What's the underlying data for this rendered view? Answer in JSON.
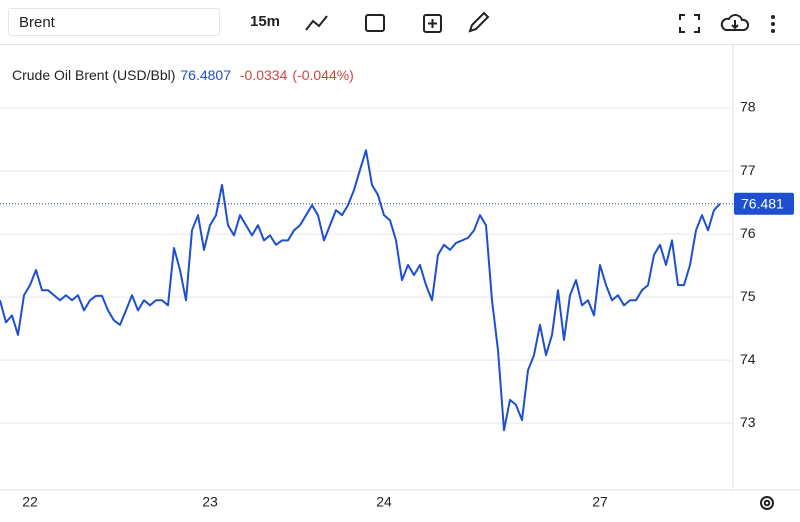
{
  "toolbar": {
    "symbol": "Brent",
    "interval": "15m"
  },
  "chart_data": {
    "type": "line",
    "series": [
      {
        "name": "Crude Oil Brent (USD/Bbl)",
        "color": "#1d4fcf",
        "values": [
          74.95,
          74.6,
          74.71,
          74.4,
          75.03,
          75.19,
          75.43,
          75.11,
          75.11,
          75.03,
          74.95,
          75.03,
          74.95,
          75.03,
          74.79,
          74.95,
          75.02,
          75.02,
          74.79,
          74.63,
          74.56,
          74.79,
          75.03,
          74.79,
          74.95,
          74.87,
          74.95,
          74.95,
          74.87,
          75.78,
          75.43,
          74.95,
          76.06,
          76.3,
          75.75,
          76.14,
          76.3,
          76.78,
          76.14,
          75.98,
          76.3,
          76.14,
          75.98,
          76.14,
          75.9,
          75.98,
          75.83,
          75.9,
          75.9,
          76.06,
          76.14,
          76.3,
          76.46,
          76.3,
          75.9,
          76.14,
          76.38,
          76.3,
          76.46,
          76.7,
          77.02,
          77.33,
          76.78,
          76.62,
          76.3,
          76.22,
          75.9,
          75.27,
          75.51,
          75.35,
          75.51,
          75.19,
          74.95,
          75.67,
          75.83,
          75.75,
          75.86,
          75.9,
          75.94,
          76.06,
          76.3,
          76.14,
          74.95,
          74.16,
          72.89,
          73.37,
          73.29,
          73.05,
          73.84,
          74.08,
          74.56,
          74.08,
          74.4,
          75.11,
          74.32,
          75.03,
          75.27,
          74.87,
          74.95,
          74.71,
          75.51,
          75.19,
          74.95,
          75.03,
          74.87,
          74.95,
          74.95,
          75.11,
          75.19,
          75.67,
          75.83,
          75.51,
          75.9,
          75.19,
          75.19,
          75.51,
          76.06,
          76.3,
          76.06,
          76.38,
          76.48
        ]
      }
    ],
    "categories": [
      null,
      null,
      null,
      null,
      null,
      "22",
      null,
      null,
      null,
      null,
      null,
      null,
      null,
      null,
      null,
      null,
      null,
      null,
      null,
      null,
      null,
      null,
      null,
      null,
      null,
      null,
      null,
      null,
      null,
      null,
      null,
      null,
      null,
      null,
      null,
      "23",
      null,
      null,
      null,
      null,
      null,
      null,
      null,
      null,
      null,
      null,
      null,
      null,
      null,
      null,
      null,
      null,
      null,
      null,
      null,
      null,
      null,
      null,
      null,
      null,
      null,
      null,
      null,
      null,
      "24",
      null,
      null,
      null,
      null,
      null,
      null,
      null,
      null,
      null,
      null,
      null,
      null,
      null,
      null,
      null,
      null,
      null,
      null,
      null,
      null,
      null,
      null,
      null,
      null,
      null,
      null,
      null,
      null,
      null,
      null,
      null,
      null,
      null,
      null,
      null,
      "27",
      null,
      null,
      null,
      null,
      null,
      null,
      null,
      null,
      null,
      null,
      null,
      null,
      null,
      null,
      null,
      null,
      null,
      null,
      null,
      null
    ],
    "last_value": 76.4807,
    "change": -0.0334,
    "change_pct": "(-0.044%)",
    "last_price_label": 76.481,
    "ylim": [
      71.94,
      79.0
    ],
    "yticks": [
      73,
      74,
      75,
      76,
      77,
      78
    ],
    "grid": true
  }
}
